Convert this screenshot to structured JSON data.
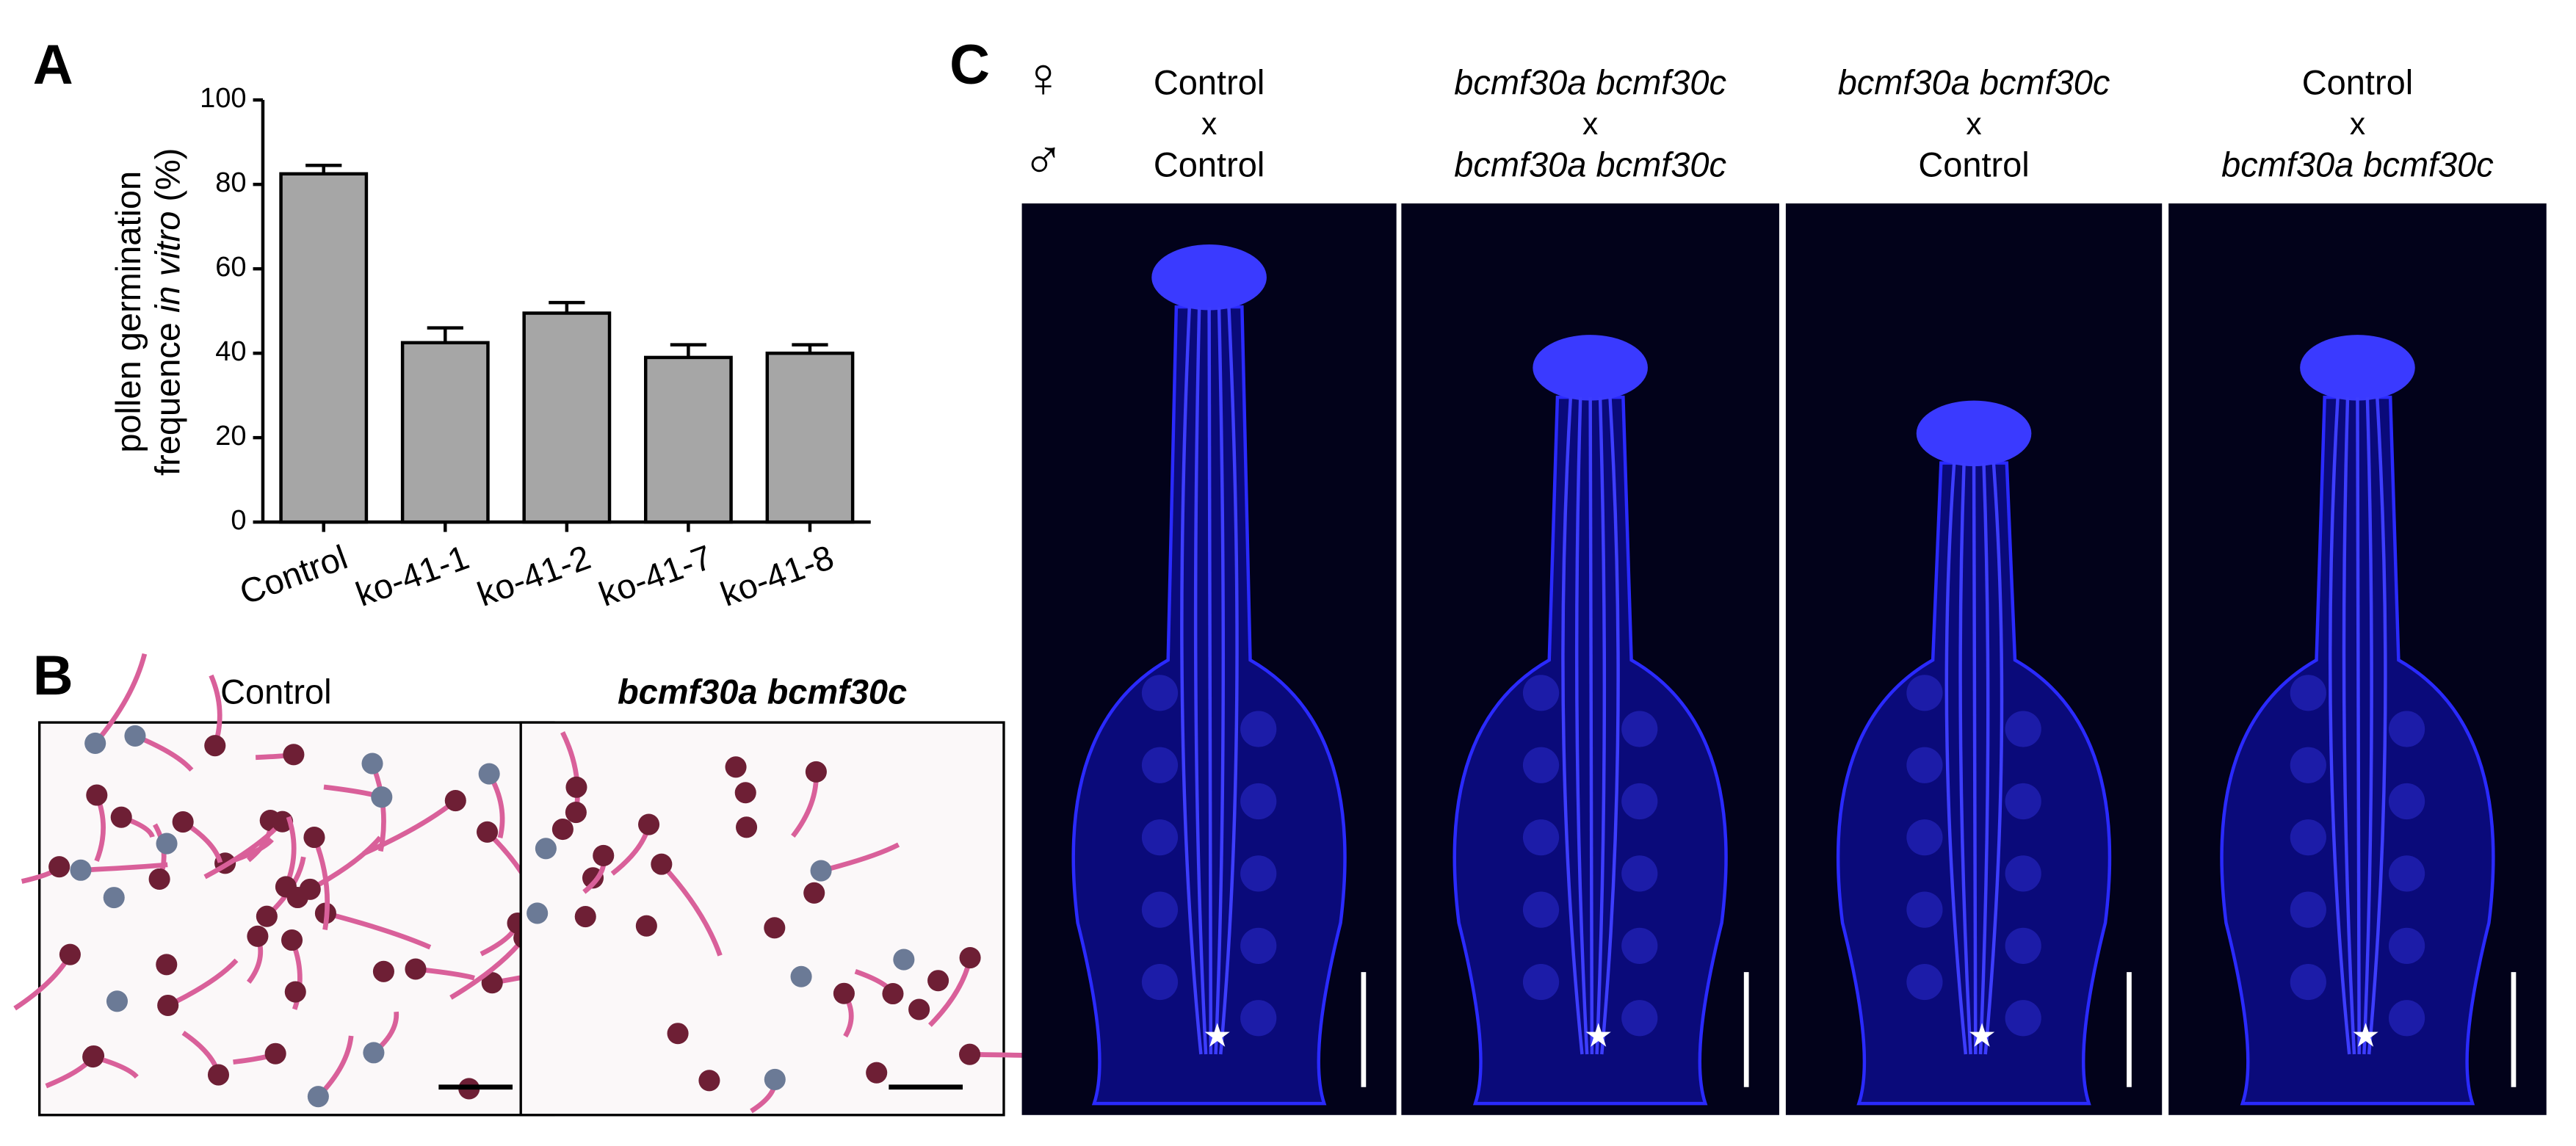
{
  "chart_data": {
    "type": "bar",
    "categories": [
      "Control",
      "ko-41-1",
      "ko-41-2",
      "ko-41-7",
      "ko-41-8"
    ],
    "values": [
      82.5,
      42.5,
      49.5,
      39,
      40
    ],
    "errors": [
      2,
      3.5,
      2.5,
      3,
      2
    ],
    "color": "#a6a6a6",
    "ylim": [
      0,
      100
    ],
    "yticks": [
      0,
      20,
      40,
      60,
      80,
      100
    ],
    "y_label": {
      "line1": "pollen germination",
      "line2_start": "frequence",
      "line2_italic": "in vitro",
      "line2_end": "(%)"
    },
    "grid": false
  },
  "panels": {
    "a": "A",
    "b": "B",
    "c": "C"
  },
  "panel_b": {
    "titles": [
      "Control",
      "bcmf30a bcmf30c"
    ]
  },
  "panel_c": {
    "female": "♀",
    "male": "♂",
    "columns": [
      {
        "female": "Control",
        "cross": "x",
        "male": "Control"
      },
      {
        "female": "bcmf30a bcmf30c",
        "cross": "x",
        "male": "bcmf30a bcmf30c"
      },
      {
        "female": "bcmf30a bcmf30c",
        "cross": "x",
        "male": "Control"
      },
      {
        "female": "Control",
        "cross": "x",
        "male": "bcmf30a bcmf30c"
      }
    ]
  }
}
